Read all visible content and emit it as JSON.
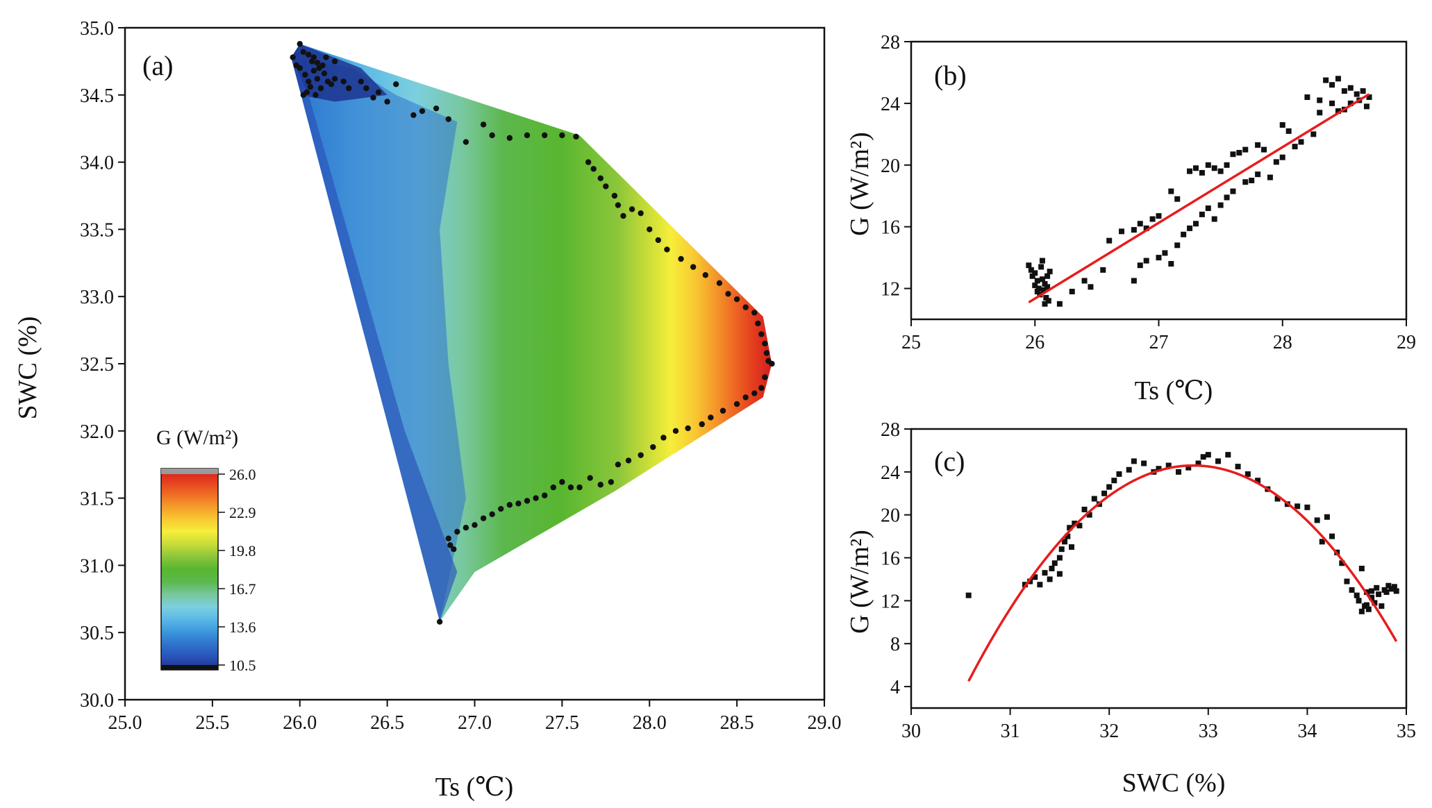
{
  "colors": {
    "points": "#111111",
    "fit_line": "#e81c1c",
    "frame": "#111111",
    "colormap": [
      "#1c2e8c",
      "#2a52b8",
      "#2f72cc",
      "#3b96dc",
      "#5ab8e6",
      "#7ccfdf",
      "#78c79c",
      "#5cb84e",
      "#58b630",
      "#8cc63a",
      "#c8dc38",
      "#f6ee3a",
      "#f8c832",
      "#f59a2a",
      "#ee6a24",
      "#e43e1e",
      "#d21e1e"
    ]
  },
  "chart_data": [
    {
      "panel": "(a)",
      "type": "contour",
      "xlabel": "Ts (℃)",
      "ylabel": "SWC (%)",
      "xlim": [
        25.0,
        29.0
      ],
      "ylim": [
        30.0,
        35.0
      ],
      "xticks": [
        "25.0",
        "25.5",
        "26.0",
        "26.5",
        "27.0",
        "27.5",
        "28.0",
        "28.5",
        "29.0"
      ],
      "yticks": [
        "30.0",
        "30.5",
        "31.0",
        "31.5",
        "32.0",
        "32.5",
        "33.0",
        "33.5",
        "34.0",
        "34.5",
        "35.0"
      ],
      "hull": [
        [
          25.95,
          34.78
        ],
        [
          26.0,
          34.88
        ],
        [
          27.6,
          34.2
        ],
        [
          28.65,
          32.85
        ],
        [
          28.7,
          32.5
        ],
        [
          28.65,
          32.25
        ],
        [
          27.8,
          31.55
        ],
        [
          27.0,
          30.95
        ],
        [
          26.8,
          30.58
        ]
      ],
      "legend": {
        "title": "G (W/m²)",
        "ticks": [
          "26.0",
          "22.9",
          "19.8",
          "16.7",
          "13.6",
          "10.5"
        ],
        "range": [
          10.5,
          26.0
        ]
      },
      "points": [
        [
          25.96,
          34.78
        ],
        [
          25.98,
          34.72
        ],
        [
          26.0,
          34.7
        ],
        [
          26.02,
          34.82
        ],
        [
          26.0,
          34.88
        ],
        [
          26.03,
          34.65
        ],
        [
          26.05,
          34.6
        ],
        [
          26.07,
          34.75
        ],
        [
          26.08,
          34.68
        ],
        [
          26.1,
          34.62
        ],
        [
          26.12,
          34.55
        ],
        [
          26.04,
          34.52
        ],
        [
          26.02,
          34.5
        ],
        [
          26.06,
          34.56
        ],
        [
          26.09,
          34.5
        ],
        [
          26.11,
          34.7
        ],
        [
          26.14,
          34.66
        ],
        [
          26.16,
          34.6
        ],
        [
          26.18,
          34.58
        ],
        [
          26.2,
          34.62
        ],
        [
          26.05,
          34.8
        ],
        [
          26.08,
          34.78
        ],
        [
          26.1,
          34.74
        ],
        [
          26.13,
          34.72
        ],
        [
          26.15,
          34.78
        ],
        [
          26.2,
          34.75
        ],
        [
          26.25,
          34.6
        ],
        [
          26.28,
          34.55
        ],
        [
          26.35,
          34.6
        ],
        [
          26.38,
          34.55
        ],
        [
          26.42,
          34.48
        ],
        [
          26.45,
          34.52
        ],
        [
          26.5,
          34.45
        ],
        [
          26.55,
          34.58
        ],
        [
          26.65,
          34.35
        ],
        [
          26.7,
          34.38
        ],
        [
          26.78,
          34.4
        ],
        [
          26.85,
          34.32
        ],
        [
          26.95,
          34.15
        ],
        [
          27.05,
          34.28
        ],
        [
          27.1,
          34.2
        ],
        [
          27.2,
          34.18
        ],
        [
          27.3,
          34.2
        ],
        [
          27.4,
          34.2
        ],
        [
          27.5,
          34.2
        ],
        [
          27.58,
          34.19
        ],
        [
          27.65,
          34.0
        ],
        [
          27.68,
          33.95
        ],
        [
          27.72,
          33.88
        ],
        [
          27.75,
          33.82
        ],
        [
          27.8,
          33.75
        ],
        [
          27.82,
          33.68
        ],
        [
          27.85,
          33.6
        ],
        [
          27.9,
          33.65
        ],
        [
          27.95,
          33.62
        ],
        [
          28.0,
          33.5
        ],
        [
          28.05,
          33.42
        ],
        [
          28.1,
          33.35
        ],
        [
          28.18,
          33.28
        ],
        [
          28.25,
          33.22
        ],
        [
          28.32,
          33.16
        ],
        [
          28.4,
          33.1
        ],
        [
          28.45,
          33.02
        ],
        [
          28.5,
          32.98
        ],
        [
          28.55,
          32.92
        ],
        [
          28.6,
          32.88
        ],
        [
          28.62,
          32.8
        ],
        [
          28.64,
          32.72
        ],
        [
          28.66,
          32.65
        ],
        [
          28.67,
          32.58
        ],
        [
          28.68,
          32.52
        ],
        [
          28.7,
          32.5
        ],
        [
          28.66,
          32.4
        ],
        [
          28.64,
          32.32
        ],
        [
          28.6,
          32.28
        ],
        [
          28.55,
          32.25
        ],
        [
          28.5,
          32.2
        ],
        [
          28.42,
          32.15
        ],
        [
          28.35,
          32.1
        ],
        [
          28.3,
          32.05
        ],
        [
          28.22,
          32.02
        ],
        [
          28.15,
          32.0
        ],
        [
          28.08,
          31.95
        ],
        [
          28.02,
          31.88
        ],
        [
          27.95,
          31.82
        ],
        [
          27.88,
          31.78
        ],
        [
          27.82,
          31.75
        ],
        [
          27.78,
          31.62
        ],
        [
          27.72,
          31.6
        ],
        [
          27.66,
          31.65
        ],
        [
          27.6,
          31.58
        ],
        [
          27.55,
          31.58
        ],
        [
          27.5,
          31.62
        ],
        [
          27.45,
          31.58
        ],
        [
          27.4,
          31.52
        ],
        [
          27.35,
          31.5
        ],
        [
          27.3,
          31.48
        ],
        [
          27.25,
          31.46
        ],
        [
          27.2,
          31.45
        ],
        [
          27.15,
          31.42
        ],
        [
          27.1,
          31.38
        ],
        [
          27.05,
          31.35
        ],
        [
          27.0,
          31.3
        ],
        [
          26.95,
          31.28
        ],
        [
          26.9,
          31.25
        ],
        [
          26.86,
          31.15
        ],
        [
          26.88,
          31.12
        ],
        [
          26.85,
          31.2
        ],
        [
          26.8,
          30.58
        ]
      ]
    },
    {
      "panel": "(b)",
      "type": "scatter",
      "xlabel": "Ts (℃)",
      "ylabel": "G (W/m²)",
      "xlim": [
        25,
        29
      ],
      "ylim": [
        10,
        28
      ],
      "xticks": [
        "25",
        "26",
        "27",
        "28",
        "29"
      ],
      "yticks": [
        "12",
        "16",
        "20",
        "24",
        "28"
      ],
      "fit": {
        "type": "linear",
        "x": [
          25.95,
          28.7
        ],
        "y": [
          11.1,
          24.6
        ]
      },
      "points": [
        [
          25.95,
          13.5
        ],
        [
          25.97,
          13.2
        ],
        [
          25.98,
          12.8
        ],
        [
          26.0,
          13.0
        ],
        [
          26.02,
          12.5
        ],
        [
          26.03,
          12.0
        ],
        [
          26.04,
          11.6
        ],
        [
          26.05,
          13.4
        ],
        [
          26.06,
          12.6
        ],
        [
          26.07,
          11.9
        ],
        [
          26.08,
          12.3
        ],
        [
          26.09,
          11.4
        ],
        [
          26.1,
          12.8
        ],
        [
          26.11,
          11.2
        ],
        [
          26.12,
          13.1
        ],
        [
          26.02,
          11.8
        ],
        [
          26.0,
          12.2
        ],
        [
          26.06,
          13.8
        ],
        [
          26.08,
          11.0
        ],
        [
          26.1,
          12.1
        ],
        [
          26.2,
          11.0
        ],
        [
          26.3,
          11.8
        ],
        [
          26.4,
          12.5
        ],
        [
          26.45,
          12.1
        ],
        [
          26.55,
          13.2
        ],
        [
          26.6,
          15.1
        ],
        [
          26.7,
          15.7
        ],
        [
          26.8,
          15.8
        ],
        [
          26.85,
          16.2
        ],
        [
          26.9,
          15.9
        ],
        [
          26.95,
          16.5
        ],
        [
          27.0,
          16.7
        ],
        [
          26.8,
          12.5
        ],
        [
          26.85,
          13.5
        ],
        [
          26.9,
          13.8
        ],
        [
          27.0,
          14.0
        ],
        [
          27.05,
          14.3
        ],
        [
          27.1,
          13.6
        ],
        [
          27.1,
          18.3
        ],
        [
          27.15,
          17.8
        ],
        [
          27.15,
          14.8
        ],
        [
          27.2,
          15.5
        ],
        [
          27.25,
          15.9
        ],
        [
          27.25,
          19.6
        ],
        [
          27.3,
          19.8
        ],
        [
          27.35,
          19.5
        ],
        [
          27.4,
          20.0
        ],
        [
          27.45,
          19.8
        ],
        [
          27.5,
          19.6
        ],
        [
          27.55,
          20.0
        ],
        [
          27.3,
          16.2
        ],
        [
          27.35,
          16.8
        ],
        [
          27.4,
          17.2
        ],
        [
          27.45,
          16.5
        ],
        [
          27.5,
          17.4
        ],
        [
          27.55,
          17.9
        ],
        [
          27.6,
          18.3
        ],
        [
          27.6,
          20.7
        ],
        [
          27.65,
          20.8
        ],
        [
          27.7,
          21.0
        ],
        [
          27.7,
          18.9
        ],
        [
          27.75,
          19.0
        ],
        [
          27.8,
          21.3
        ],
        [
          27.8,
          19.4
        ],
        [
          27.85,
          21.0
        ],
        [
          27.9,
          19.2
        ],
        [
          27.95,
          20.2
        ],
        [
          28.0,
          20.5
        ],
        [
          28.0,
          22.6
        ],
        [
          28.05,
          22.2
        ],
        [
          28.1,
          21.2
        ],
        [
          28.15,
          21.5
        ],
        [
          28.2,
          24.4
        ],
        [
          28.25,
          22.0
        ],
        [
          28.3,
          24.2
        ],
        [
          28.35,
          25.5
        ],
        [
          28.4,
          25.2
        ],
        [
          28.45,
          25.6
        ],
        [
          28.5,
          24.8
        ],
        [
          28.55,
          25.0
        ],
        [
          28.6,
          24.6
        ],
        [
          28.62,
          24.2
        ],
        [
          28.65,
          24.8
        ],
        [
          28.68,
          23.8
        ],
        [
          28.7,
          24.4
        ],
        [
          28.45,
          23.5
        ],
        [
          28.5,
          23.6
        ],
        [
          28.55,
          24.0
        ],
        [
          28.4,
          24.0
        ],
        [
          28.3,
          23.4
        ]
      ]
    },
    {
      "panel": "(c)",
      "type": "scatter",
      "xlabel": "SWC (%)",
      "ylabel": "G (W/m²)",
      "xlim": [
        30,
        35
      ],
      "ylim": [
        2,
        28
      ],
      "xticks": [
        "30",
        "31",
        "32",
        "33",
        "34",
        "35"
      ],
      "yticks": [
        "4",
        "8",
        "12",
        "16",
        "20",
        "24",
        "28"
      ],
      "fit": {
        "type": "quadratic",
        "a": -3.9,
        "h": 32.85,
        "k": 24.6,
        "x_range": [
          30.58,
          34.9
        ]
      },
      "points": [
        [
          30.58,
          12.5
        ],
        [
          31.15,
          13.5
        ],
        [
          31.2,
          13.8
        ],
        [
          31.25,
          14.2
        ],
        [
          31.3,
          13.5
        ],
        [
          31.35,
          14.6
        ],
        [
          31.4,
          14.0
        ],
        [
          31.42,
          15.0
        ],
        [
          31.45,
          15.5
        ],
        [
          31.5,
          16.0
        ],
        [
          31.5,
          14.5
        ],
        [
          31.52,
          16.8
        ],
        [
          31.55,
          17.5
        ],
        [
          31.58,
          18.0
        ],
        [
          31.6,
          18.8
        ],
        [
          31.62,
          17.0
        ],
        [
          31.65,
          19.2
        ],
        [
          31.7,
          19.0
        ],
        [
          31.75,
          20.5
        ],
        [
          31.8,
          20.0
        ],
        [
          31.85,
          21.5
        ],
        [
          31.9,
          21.0
        ],
        [
          31.95,
          22.0
        ],
        [
          32.0,
          22.6
        ],
        [
          32.05,
          23.2
        ],
        [
          32.1,
          23.8
        ],
        [
          32.2,
          24.2
        ],
        [
          32.25,
          25.0
        ],
        [
          32.35,
          24.8
        ],
        [
          32.45,
          24.0
        ],
        [
          32.5,
          24.3
        ],
        [
          32.6,
          24.6
        ],
        [
          32.7,
          24.0
        ],
        [
          32.8,
          24.4
        ],
        [
          32.9,
          24.8
        ],
        [
          32.95,
          25.4
        ],
        [
          33.0,
          25.6
        ],
        [
          33.1,
          25.0
        ],
        [
          33.2,
          25.6
        ],
        [
          33.3,
          24.5
        ],
        [
          33.4,
          23.8
        ],
        [
          33.5,
          23.2
        ],
        [
          33.6,
          22.4
        ],
        [
          33.7,
          21.5
        ],
        [
          33.8,
          21.0
        ],
        [
          33.9,
          20.8
        ],
        [
          34.0,
          20.7
        ],
        [
          34.1,
          19.5
        ],
        [
          34.15,
          17.5
        ],
        [
          34.2,
          19.8
        ],
        [
          34.25,
          18.0
        ],
        [
          34.3,
          16.5
        ],
        [
          34.35,
          15.5
        ],
        [
          34.4,
          13.8
        ],
        [
          34.45,
          13.0
        ],
        [
          34.5,
          12.5
        ],
        [
          34.52,
          12.0
        ],
        [
          34.55,
          15.0
        ],
        [
          34.58,
          11.5
        ],
        [
          34.6,
          12.8
        ],
        [
          34.62,
          11.2
        ],
        [
          34.65,
          12.3
        ],
        [
          34.68,
          11.8
        ],
        [
          34.7,
          13.2
        ],
        [
          34.72,
          12.6
        ],
        [
          34.75,
          11.5
        ],
        [
          34.78,
          13.0
        ],
        [
          34.8,
          12.8
        ],
        [
          34.82,
          13.4
        ],
        [
          34.85,
          13.1
        ],
        [
          34.88,
          13.3
        ],
        [
          34.9,
          12.9
        ],
        [
          34.55,
          11.0
        ],
        [
          34.6,
          11.6
        ],
        [
          34.65,
          12.9
        ]
      ]
    }
  ]
}
